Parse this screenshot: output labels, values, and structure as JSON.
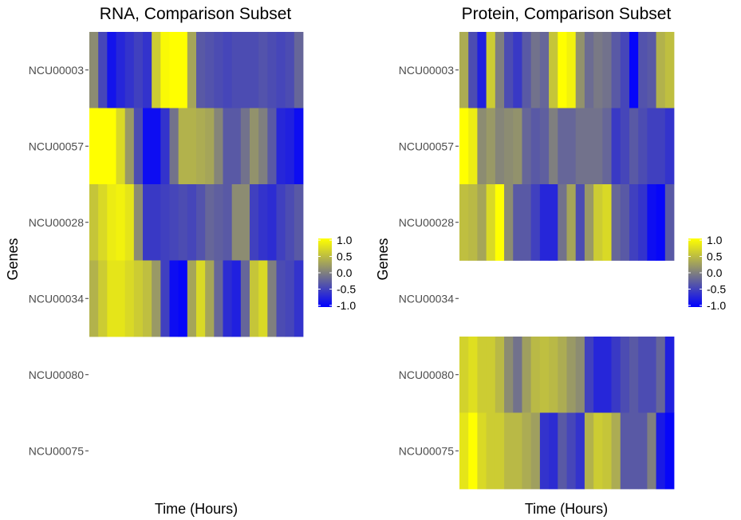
{
  "colors": {
    "low": "#0000ff",
    "mid": "#7f7f7f",
    "high": "#ffff00",
    "tick": "#333333"
  },
  "chart_data": [
    {
      "type": "heatmap",
      "title": "RNA, Comparison Subset",
      "xlabel": "Time (Hours)",
      "ylabel": "Genes",
      "genes": [
        "NCU00003",
        "NCU00057",
        "NCU00028",
        "NCU00034",
        "NCU00080",
        "NCU00075"
      ],
      "n_timepoints": 24,
      "value_range": [
        -1,
        1
      ],
      "legend_ticks": [
        "1.0",
        "0.5",
        "0.0",
        "-0.5",
        "-1.0"
      ],
      "series": [
        {
          "name": "NCU00003",
          "values": [
            0.1,
            -0.45,
            -0.85,
            -0.7,
            -0.6,
            -0.5,
            -0.6,
            0.6,
            0.95,
            1.0,
            1.0,
            0.3,
            -0.3,
            -0.35,
            -0.4,
            -0.45,
            -0.4,
            -0.4,
            -0.4,
            -0.35,
            -0.4,
            -0.45,
            -0.4,
            -0.2
          ]
        },
        {
          "name": "NCU00057",
          "values": [
            1.0,
            1.0,
            1.0,
            0.7,
            0.2,
            -0.4,
            -0.9,
            -0.9,
            -0.6,
            -0.1,
            0.4,
            0.4,
            0.35,
            0.3,
            0.05,
            -0.3,
            -0.3,
            -0.1,
            0.15,
            0.0,
            -0.3,
            -0.7,
            -0.75,
            -0.9
          ]
        },
        {
          "name": "NCU00028",
          "values": [
            0.55,
            0.7,
            0.85,
            0.9,
            0.8,
            0.1,
            -0.55,
            -0.55,
            -0.5,
            -0.45,
            -0.4,
            -0.45,
            -0.35,
            -0.2,
            -0.25,
            -0.3,
            0.1,
            0.1,
            -0.5,
            -0.6,
            -0.65,
            -0.5,
            -0.4,
            -0.3
          ]
        },
        {
          "name": "NCU00034",
          "values": [
            0.4,
            0.6,
            0.8,
            0.8,
            0.7,
            0.6,
            0.5,
            0.2,
            -0.5,
            -0.9,
            -0.95,
            0.3,
            0.7,
            0.3,
            -0.2,
            -0.65,
            -0.75,
            -0.2,
            0.55,
            0.7,
            0.0,
            -0.4,
            -0.45,
            -0.6
          ]
        },
        {
          "name": "NCU00080",
          "values": []
        },
        {
          "name": "NCU00075",
          "values": []
        }
      ]
    },
    {
      "type": "heatmap",
      "title": "Protein, Comparison Subset",
      "xlabel": "Time (Hours)",
      "ylabel": "Genes",
      "genes": [
        "NCU00003",
        "NCU00057",
        "NCU00028",
        "NCU00034",
        "NCU00080",
        "NCU00075"
      ],
      "n_timepoints": 24,
      "value_range": [
        -1,
        1
      ],
      "legend_ticks": [
        "1.0",
        "0.5",
        "0.0",
        "-0.5",
        "-1.0"
      ],
      "series": [
        {
          "name": "NCU00003",
          "values": [
            0.35,
            -0.4,
            -0.75,
            0.6,
            0.0,
            -0.4,
            -0.55,
            -0.3,
            -0.1,
            -0.2,
            0.55,
            1.0,
            0.9,
            0.15,
            -0.15,
            -0.05,
            -0.1,
            -0.3,
            -0.45,
            -0.95,
            -0.35,
            -0.3,
            0.4,
            0.5
          ]
        },
        {
          "name": "NCU00057",
          "values": [
            1.0,
            0.85,
            0.1,
            0.2,
            0.05,
            0.1,
            0.15,
            -0.2,
            -0.3,
            -0.25,
            0.0,
            -0.2,
            -0.2,
            -0.1,
            -0.1,
            -0.1,
            -0.2,
            -0.55,
            -0.45,
            -0.3,
            -0.4,
            -0.5,
            -0.5,
            -0.6
          ]
        },
        {
          "name": "NCU00028",
          "values": [
            0.5,
            0.45,
            0.3,
            0.7,
            1.0,
            0.1,
            -0.3,
            -0.3,
            -0.5,
            -0.7,
            -0.7,
            -0.1,
            0.3,
            -0.4,
            0.2,
            0.6,
            0.7,
            -0.2,
            -0.3,
            -0.5,
            -0.6,
            -0.9,
            -0.95,
            -0.3
          ]
        },
        {
          "name": "NCU00034",
          "values": []
        },
        {
          "name": "NCU00080",
          "values": [
            0.65,
            0.75,
            0.6,
            0.6,
            0.45,
            0.1,
            -0.1,
            0.25,
            0.45,
            0.5,
            0.45,
            0.35,
            0.2,
            0.1,
            -0.5,
            -0.7,
            -0.7,
            -0.55,
            -0.4,
            -0.3,
            -0.4,
            -0.4,
            -0.2,
            -0.75
          ]
        },
        {
          "name": "NCU00075",
          "values": [
            0.8,
            1.0,
            0.7,
            0.6,
            0.6,
            0.45,
            0.45,
            0.35,
            0.25,
            -0.6,
            -0.65,
            -0.3,
            -0.45,
            -0.6,
            0.4,
            0.6,
            0.55,
            0.35,
            -0.3,
            -0.3,
            -0.3,
            0.0,
            -0.8,
            -0.95
          ]
        }
      ]
    }
  ]
}
